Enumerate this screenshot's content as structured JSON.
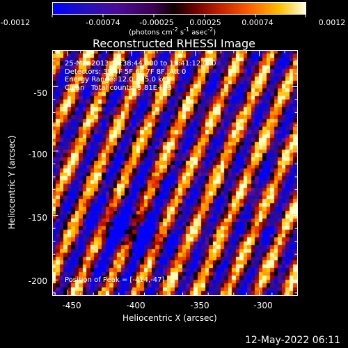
{
  "colorbar": {
    "ticks": [
      "-0.0012",
      "-0.00074",
      "-0.00025",
      "0.00025",
      "0.00074",
      "0.0012"
    ],
    "units_main": "(photons cm",
    "units_exp1": "-2",
    "units_mid": " s",
    "units_exp2": "-1",
    "units_tail": " asec",
    "units_exp3": "-2",
    "units_close": ")"
  },
  "title": "Reconstructed RHESSI Image",
  "info": {
    "line1": "25-Mar-2013 15:38:44.000 to 15:41:12.000",
    "line2": "Detectors: 3F 4F 5F 6F 7F 8F, Att 0",
    "line3": "Energy Range: 12.0 - 25.0 keV",
    "line4": "Clean   Total counts: 3.81E+03",
    "peak": "Position of Peak = [-414,-47]"
  },
  "axes": {
    "xlabel": "Heliocentric X (arcsec)",
    "ylabel": "Heliocentric Y (arcsec)",
    "xticks": [
      "-450",
      "-400",
      "-350",
      "-300"
    ],
    "yticks": [
      "-50",
      "-100",
      "-150",
      "-200"
    ],
    "xrange": [
      -462,
      -270
    ],
    "yrange": [
      -212,
      -22
    ]
  },
  "timestamp": "12-May-2022 06:11",
  "colormap": [
    "#0000ff",
    "#1a0ab4",
    "#3a0a8a",
    "#5a10a0",
    "#000000",
    "#7a0000",
    "#d22000",
    "#ff6a00",
    "#ffc000",
    "#ffffc0"
  ]
}
